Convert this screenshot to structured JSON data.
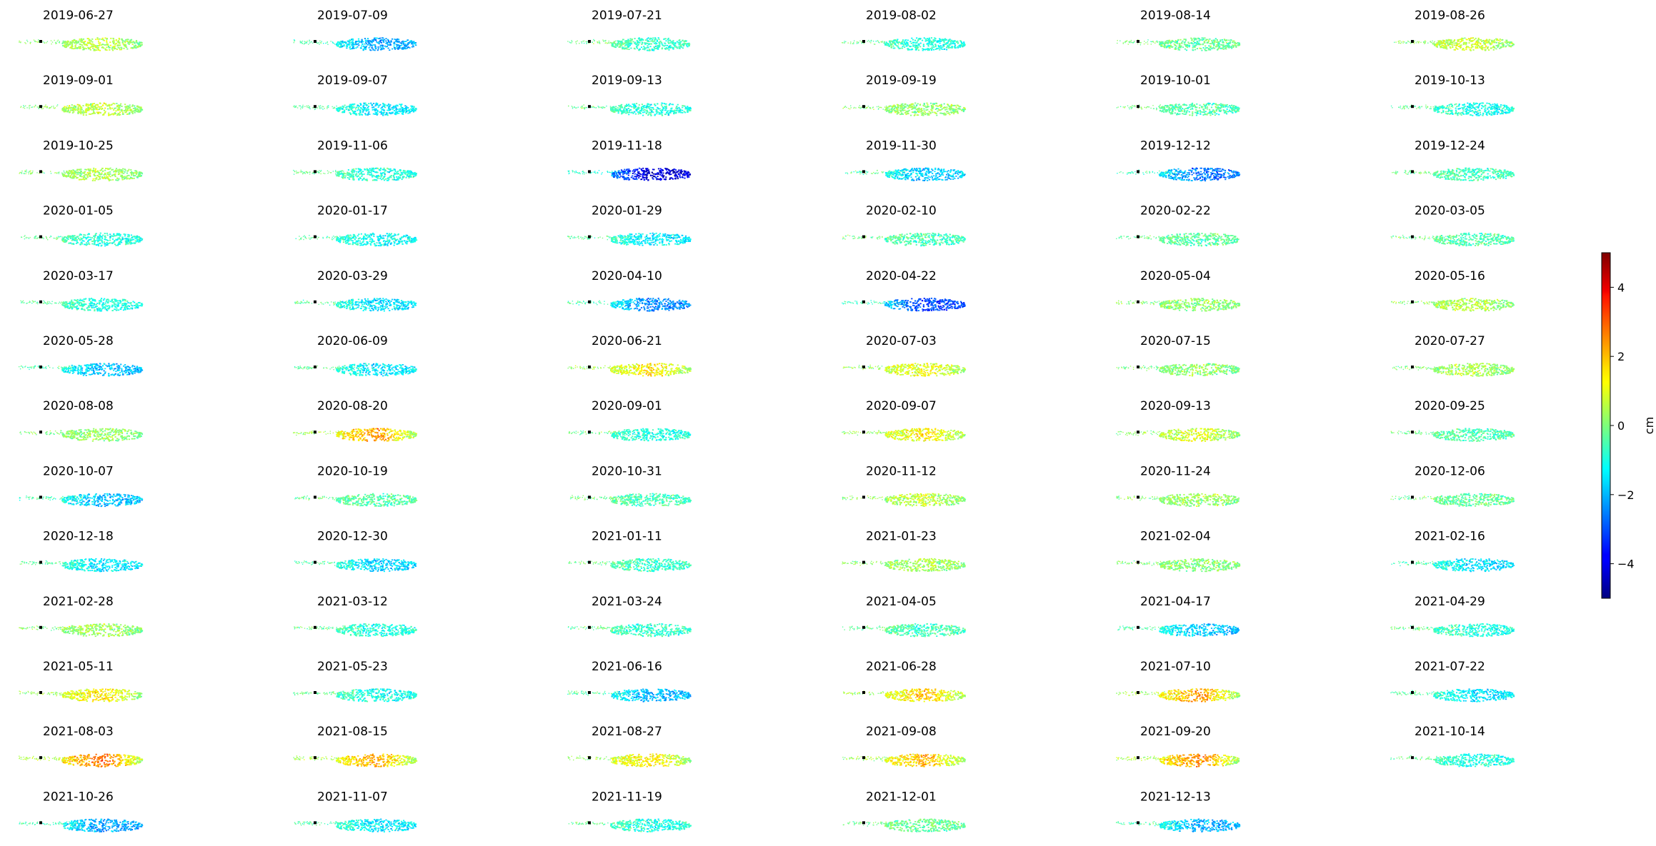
{
  "chart_data": {
    "type": "heatmap",
    "panel_titles": [
      "2019-06-27",
      "2019-07-09",
      "2019-07-21",
      "2019-08-02",
      "2019-08-14",
      "2019-08-26",
      "2019-09-01",
      "2019-09-07",
      "2019-09-13",
      "2019-09-19",
      "2019-10-01",
      "2019-10-13",
      "2019-10-25",
      "2019-11-06",
      "2019-11-18",
      "2019-11-30",
      "2019-12-12",
      "2019-12-24",
      "2020-01-05",
      "2020-01-17",
      "2020-01-29",
      "2020-02-10",
      "2020-02-22",
      "2020-03-05",
      "2020-03-17",
      "2020-03-29",
      "2020-04-10",
      "2020-04-22",
      "2020-05-04",
      "2020-05-16",
      "2020-05-28",
      "2020-06-09",
      "2020-06-21",
      "2020-07-03",
      "2020-07-15",
      "2020-07-27",
      "2020-08-08",
      "2020-08-20",
      "2020-09-01",
      "2020-09-07",
      "2020-09-13",
      "2020-09-25",
      "2020-10-07",
      "2020-10-19",
      "2020-10-31",
      "2020-11-12",
      "2020-11-24",
      "2020-12-06",
      "2020-12-18",
      "2020-12-30",
      "2021-01-11",
      "2021-01-23",
      "2021-02-04",
      "2021-02-16",
      "2021-02-28",
      "2021-03-12",
      "2021-03-24",
      "2021-04-05",
      "2021-04-17",
      "2021-04-29",
      "2021-05-11",
      "2021-05-23",
      "2021-06-16",
      "2021-06-28",
      "2021-07-10",
      "2021-07-22",
      "2021-08-03",
      "2021-08-15",
      "2021-08-27",
      "2021-09-08",
      "2021-09-20",
      "2021-10-14",
      "2021-10-26",
      "2021-11-07",
      "2021-11-19",
      "2021-12-01",
      "2021-12-13"
    ],
    "panel_mean_displacement_cm": [
      0.5,
      -1.8,
      -0.6,
      -0.8,
      -0.2,
      0.7,
      0.6,
      -1.2,
      -0.8,
      0.2,
      -0.4,
      -0.9,
      0.4,
      -0.8,
      -3.5,
      -1.5,
      -2.2,
      -0.5,
      -0.8,
      -1.0,
      -1.2,
      -0.5,
      -0.3,
      -0.4,
      -0.8,
      -1.3,
      -2.0,
      -2.6,
      0.2,
      0.5,
      -1.6,
      -1.2,
      1.2,
      1.0,
      0.2,
      0.4,
      0.2,
      1.8,
      -0.8,
      1.2,
      0.8,
      -0.4,
      -1.6,
      -0.3,
      -0.5,
      0.6,
      0.3,
      -0.2,
      -1.2,
      -1.4,
      -0.6,
      0.4,
      0.1,
      -1.3,
      0.3,
      -0.8,
      -0.7,
      -0.5,
      -1.5,
      -0.8,
      1.2,
      -0.9,
      -1.6,
      1.5,
      1.8,
      -1.2,
      2.2,
      1.8,
      1.2,
      1.6,
      2.0,
      -0.8,
      -1.8,
      -1.2,
      -0.8,
      -0.2,
      -1.7
    ],
    "colormap": "jet",
    "colorbar": {
      "min": -5,
      "max": 5,
      "ticks": [
        4,
        2,
        0,
        -2,
        -4
      ],
      "tick_labels": [
        "4",
        "2",
        "0",
        "−2",
        "−4"
      ],
      "label": "cm"
    },
    "grid": false,
    "axes_visible": false,
    "layout": {
      "rows": 13,
      "columns": 6
    }
  }
}
